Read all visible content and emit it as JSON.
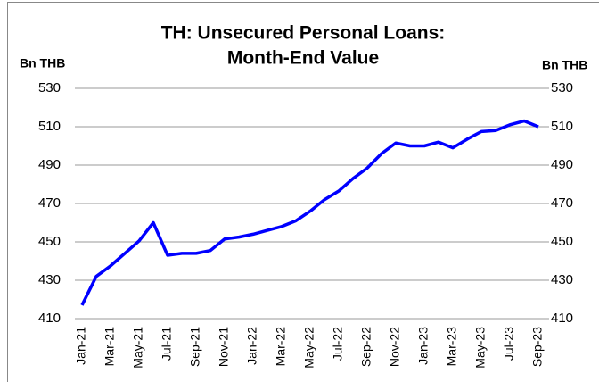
{
  "chart_data": {
    "type": "line",
    "title": [
      "TH: Unsecured Personal Loans:",
      "Month-End Value"
    ],
    "y_label": "Bn THB",
    "y2_label": "Bn THB",
    "categories": [
      "Jan-21",
      null,
      "Mar-21",
      null,
      "May-21",
      null,
      "Jul-21",
      null,
      "Sep-21",
      null,
      "Nov-21",
      null,
      "Jan-22",
      null,
      "Mar-22",
      null,
      "May-22",
      null,
      "Jul-22",
      null,
      "Sep-22",
      null,
      "Nov-22",
      null,
      "Jan-23",
      null,
      "Mar-23",
      null,
      "May-23",
      null,
      "Jul-23",
      null,
      "Sep-23"
    ],
    "series": [
      {
        "name": "Unsecured Personal Loans",
        "color": "#0000ff",
        "values": [
          417,
          432,
          437.5,
          444,
          450.5,
          460,
          443,
          444,
          444,
          445.5,
          451.5,
          452.5,
          454,
          456,
          458,
          461,
          466,
          472,
          476.5,
          483,
          488.5,
          496,
          501.5,
          500,
          500,
          502,
          499,
          503.5,
          507.5,
          508,
          511,
          513,
          510
        ]
      }
    ],
    "ylim": [
      410,
      530
    ],
    "yticks": [
      410,
      430,
      450,
      470,
      490,
      510,
      530
    ],
    "y2lim": [
      410,
      530
    ],
    "y2ticks": [
      410,
      430,
      450,
      470,
      490,
      510,
      530
    ],
    "grid": true,
    "legend": false
  }
}
